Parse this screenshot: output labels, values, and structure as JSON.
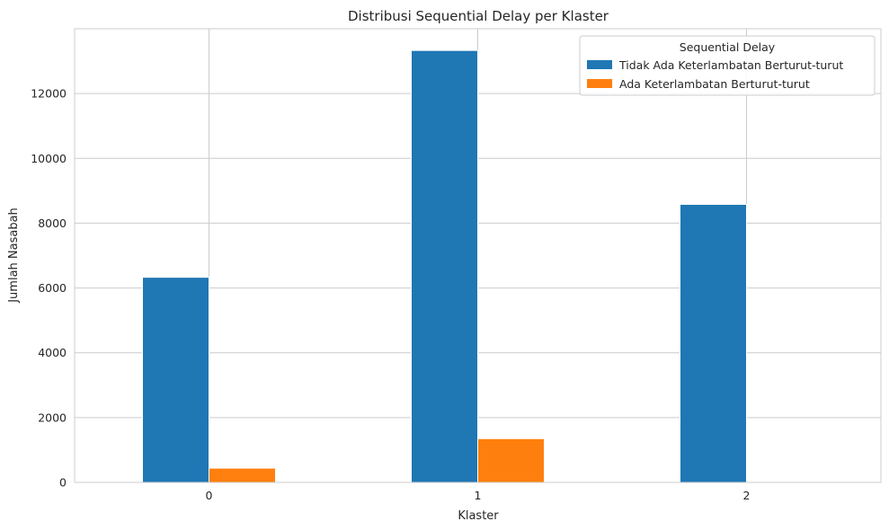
{
  "chart_data": {
    "type": "bar",
    "title": "Distribusi Sequential Delay per Klaster",
    "xlabel": "Klaster",
    "ylabel": "Jumlah Nasabah",
    "categories": [
      "0",
      "1",
      "2"
    ],
    "ylim": [
      0,
      14000
    ],
    "yticks": [
      0,
      2000,
      4000,
      6000,
      8000,
      10000,
      12000
    ],
    "grid": true,
    "legend": {
      "title": "Sequential Delay",
      "position": "top-right"
    },
    "series": [
      {
        "name": "Tidak Ada Keterlambatan Berturut-turut",
        "color": "#1f77b4",
        "values": [
          6330,
          13330,
          8580
        ]
      },
      {
        "name": "Ada Keterlambatan Berturut-turut",
        "color": "#ff7f0e",
        "values": [
          440,
          1350,
          0
        ]
      }
    ]
  }
}
